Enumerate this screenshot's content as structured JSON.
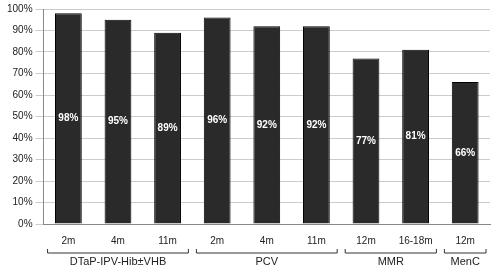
{
  "chart_data": {
    "type": "bar",
    "categories": [
      "2m",
      "4m",
      "11m",
      "2m",
      "4m",
      "11m",
      "12m",
      "16-18m",
      "12m"
    ],
    "values": [
      98,
      95,
      89,
      96,
      92,
      92,
      77,
      81,
      66
    ],
    "value_labels": [
      "98%",
      "95%",
      "89%",
      "96%",
      "92%",
      "92%",
      "77%",
      "81%",
      "66%"
    ],
    "groups": [
      {
        "name": "DTaP-IPV-Hib±VHB",
        "start": 0,
        "end": 2
      },
      {
        "name": "PCV",
        "start": 3,
        "end": 5
      },
      {
        "name": "MMR",
        "start": 6,
        "end": 7
      },
      {
        "name": "MenC",
        "start": 8,
        "end": 8
      }
    ],
    "color": "#2a2a2a",
    "ylim": [
      0,
      100
    ],
    "yticks": [
      {
        "value": 0,
        "label": "0%"
      },
      {
        "value": 10,
        "label": "10%"
      },
      {
        "value": 20,
        "label": "20%"
      },
      {
        "value": 30,
        "label": "30%"
      },
      {
        "value": 40,
        "label": "40%"
      },
      {
        "value": 50,
        "label": "50%"
      },
      {
        "value": 60,
        "label": "60%"
      },
      {
        "value": 70,
        "label": "70%"
      },
      {
        "value": 80,
        "label": "80%"
      },
      {
        "value": 90,
        "label": "90%"
      },
      {
        "value": 100,
        "label": "100%"
      }
    ],
    "grid": true,
    "data_labels": true
  }
}
